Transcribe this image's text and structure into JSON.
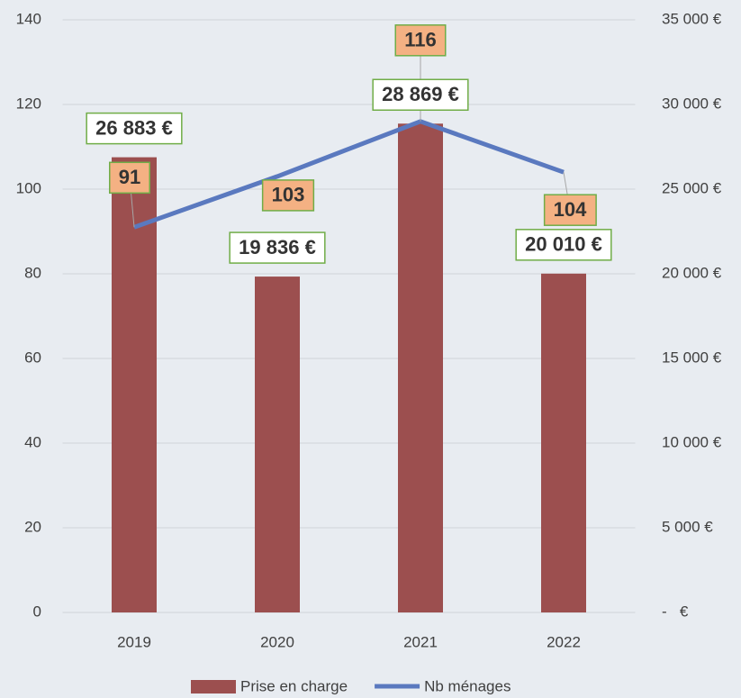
{
  "chart_data": {
    "type": "bar-line",
    "categories": [
      "2019",
      "2020",
      "2021",
      "2022"
    ],
    "series": [
      {
        "name": "Prise en charge",
        "type": "bar",
        "axis": "y2",
        "color": "#9c4f4f",
        "values": [
          26883,
          19836,
          28869,
          20010
        ],
        "value_labels": [
          "26 883 €",
          "19 836 €",
          "28 869 €",
          "20 010 €"
        ]
      },
      {
        "name": "Nb ménages",
        "type": "line",
        "axis": "y",
        "color": "#5a79bf",
        "values": [
          91,
          103,
          116,
          104
        ]
      }
    ],
    "ylim": [
      0,
      140
    ],
    "yticks": [
      0,
      20,
      40,
      60,
      80,
      100,
      120,
      140
    ],
    "y2lim": [
      0,
      35000
    ],
    "y2ticks": [
      {
        "value": 0,
        "label": "-   €"
      },
      {
        "value": 5000,
        "label": "5 000 €"
      },
      {
        "value": 10000,
        "label": "10 000 €"
      },
      {
        "value": 15000,
        "label": "15 000 €"
      },
      {
        "value": 20000,
        "label": "20 000 €"
      },
      {
        "value": 25000,
        "label": "25 000 €"
      },
      {
        "value": 30000,
        "label": "30 000 €"
      },
      {
        "value": 35000,
        "label": "35 000 €"
      }
    ],
    "grid": true,
    "legend": "bottom"
  }
}
